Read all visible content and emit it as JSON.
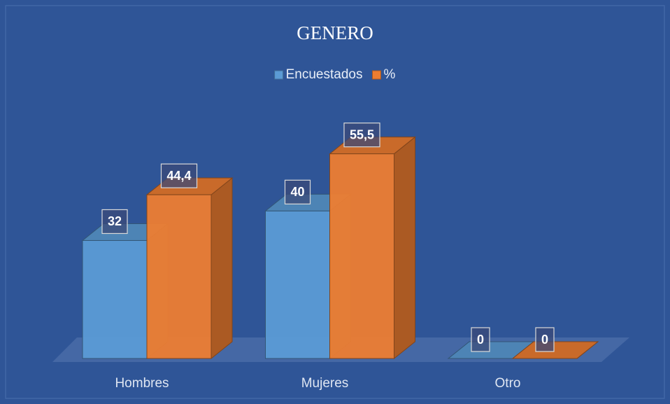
{
  "chart_data": {
    "type": "bar3d",
    "title": "GENERO",
    "categories": [
      "Hombres",
      "Mujeres",
      "Otro"
    ],
    "series": [
      {
        "name": "Encuestados",
        "color": "#5b9bd5",
        "values": [
          32,
          40,
          0
        ]
      },
      {
        "name": "%",
        "color": "#ed7d31",
        "values": [
          44.4,
          55.5,
          0
        ],
        "value_labels": [
          "44,4",
          "55,5",
          "0"
        ]
      }
    ],
    "ylim": [
      0,
      60
    ],
    "legend": "top"
  }
}
